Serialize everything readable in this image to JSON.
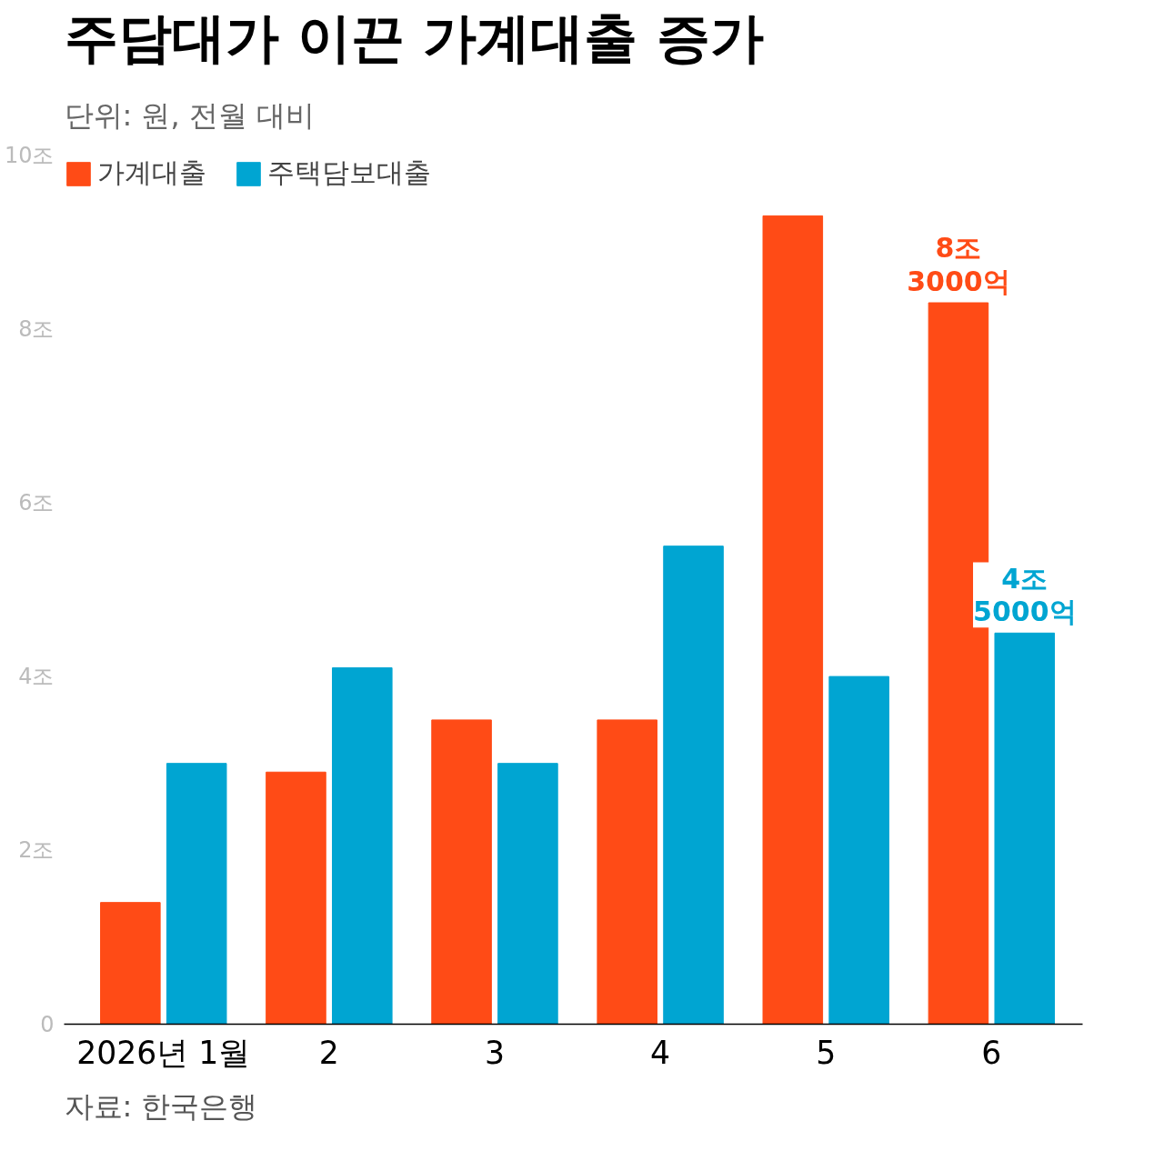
{
  "chart_data": {
    "type": "bar",
    "title": "주담대가 이끈 가계대출 증가",
    "subtitle": "단위: 원, 전월 대비",
    "categories": [
      "2026년 1월",
      "2",
      "3",
      "4",
      "5",
      "6"
    ],
    "series": [
      {
        "name": "가계대출",
        "color": "#ff4b16",
        "values": [
          1.4,
          2.9,
          3.5,
          3.5,
          9.3,
          8.3
        ],
        "value_labels": [
          null,
          null,
          null,
          null,
          null,
          "8조\n3000억"
        ]
      },
      {
        "name": "주택담보대출",
        "color": "#00a5d2",
        "values": [
          3.0,
          4.1,
          3.0,
          5.5,
          4.0,
          4.5
        ],
        "value_labels": [
          null,
          null,
          null,
          null,
          null,
          "4조\n5000억"
        ]
      }
    ],
    "ylim": [
      0,
      10
    ],
    "yticks": [
      0,
      {
        "value": 2,
        "label": "2조"
      },
      {
        "value": 4,
        "label": "4조"
      },
      {
        "value": 6,
        "label": "6조"
      },
      {
        "value": 8,
        "label": "8조"
      },
      {
        "value": 10,
        "label": "10조"
      }
    ],
    "grid": false,
    "legend": "top",
    "annotations": [
      "자료: 한국은행"
    ]
  }
}
